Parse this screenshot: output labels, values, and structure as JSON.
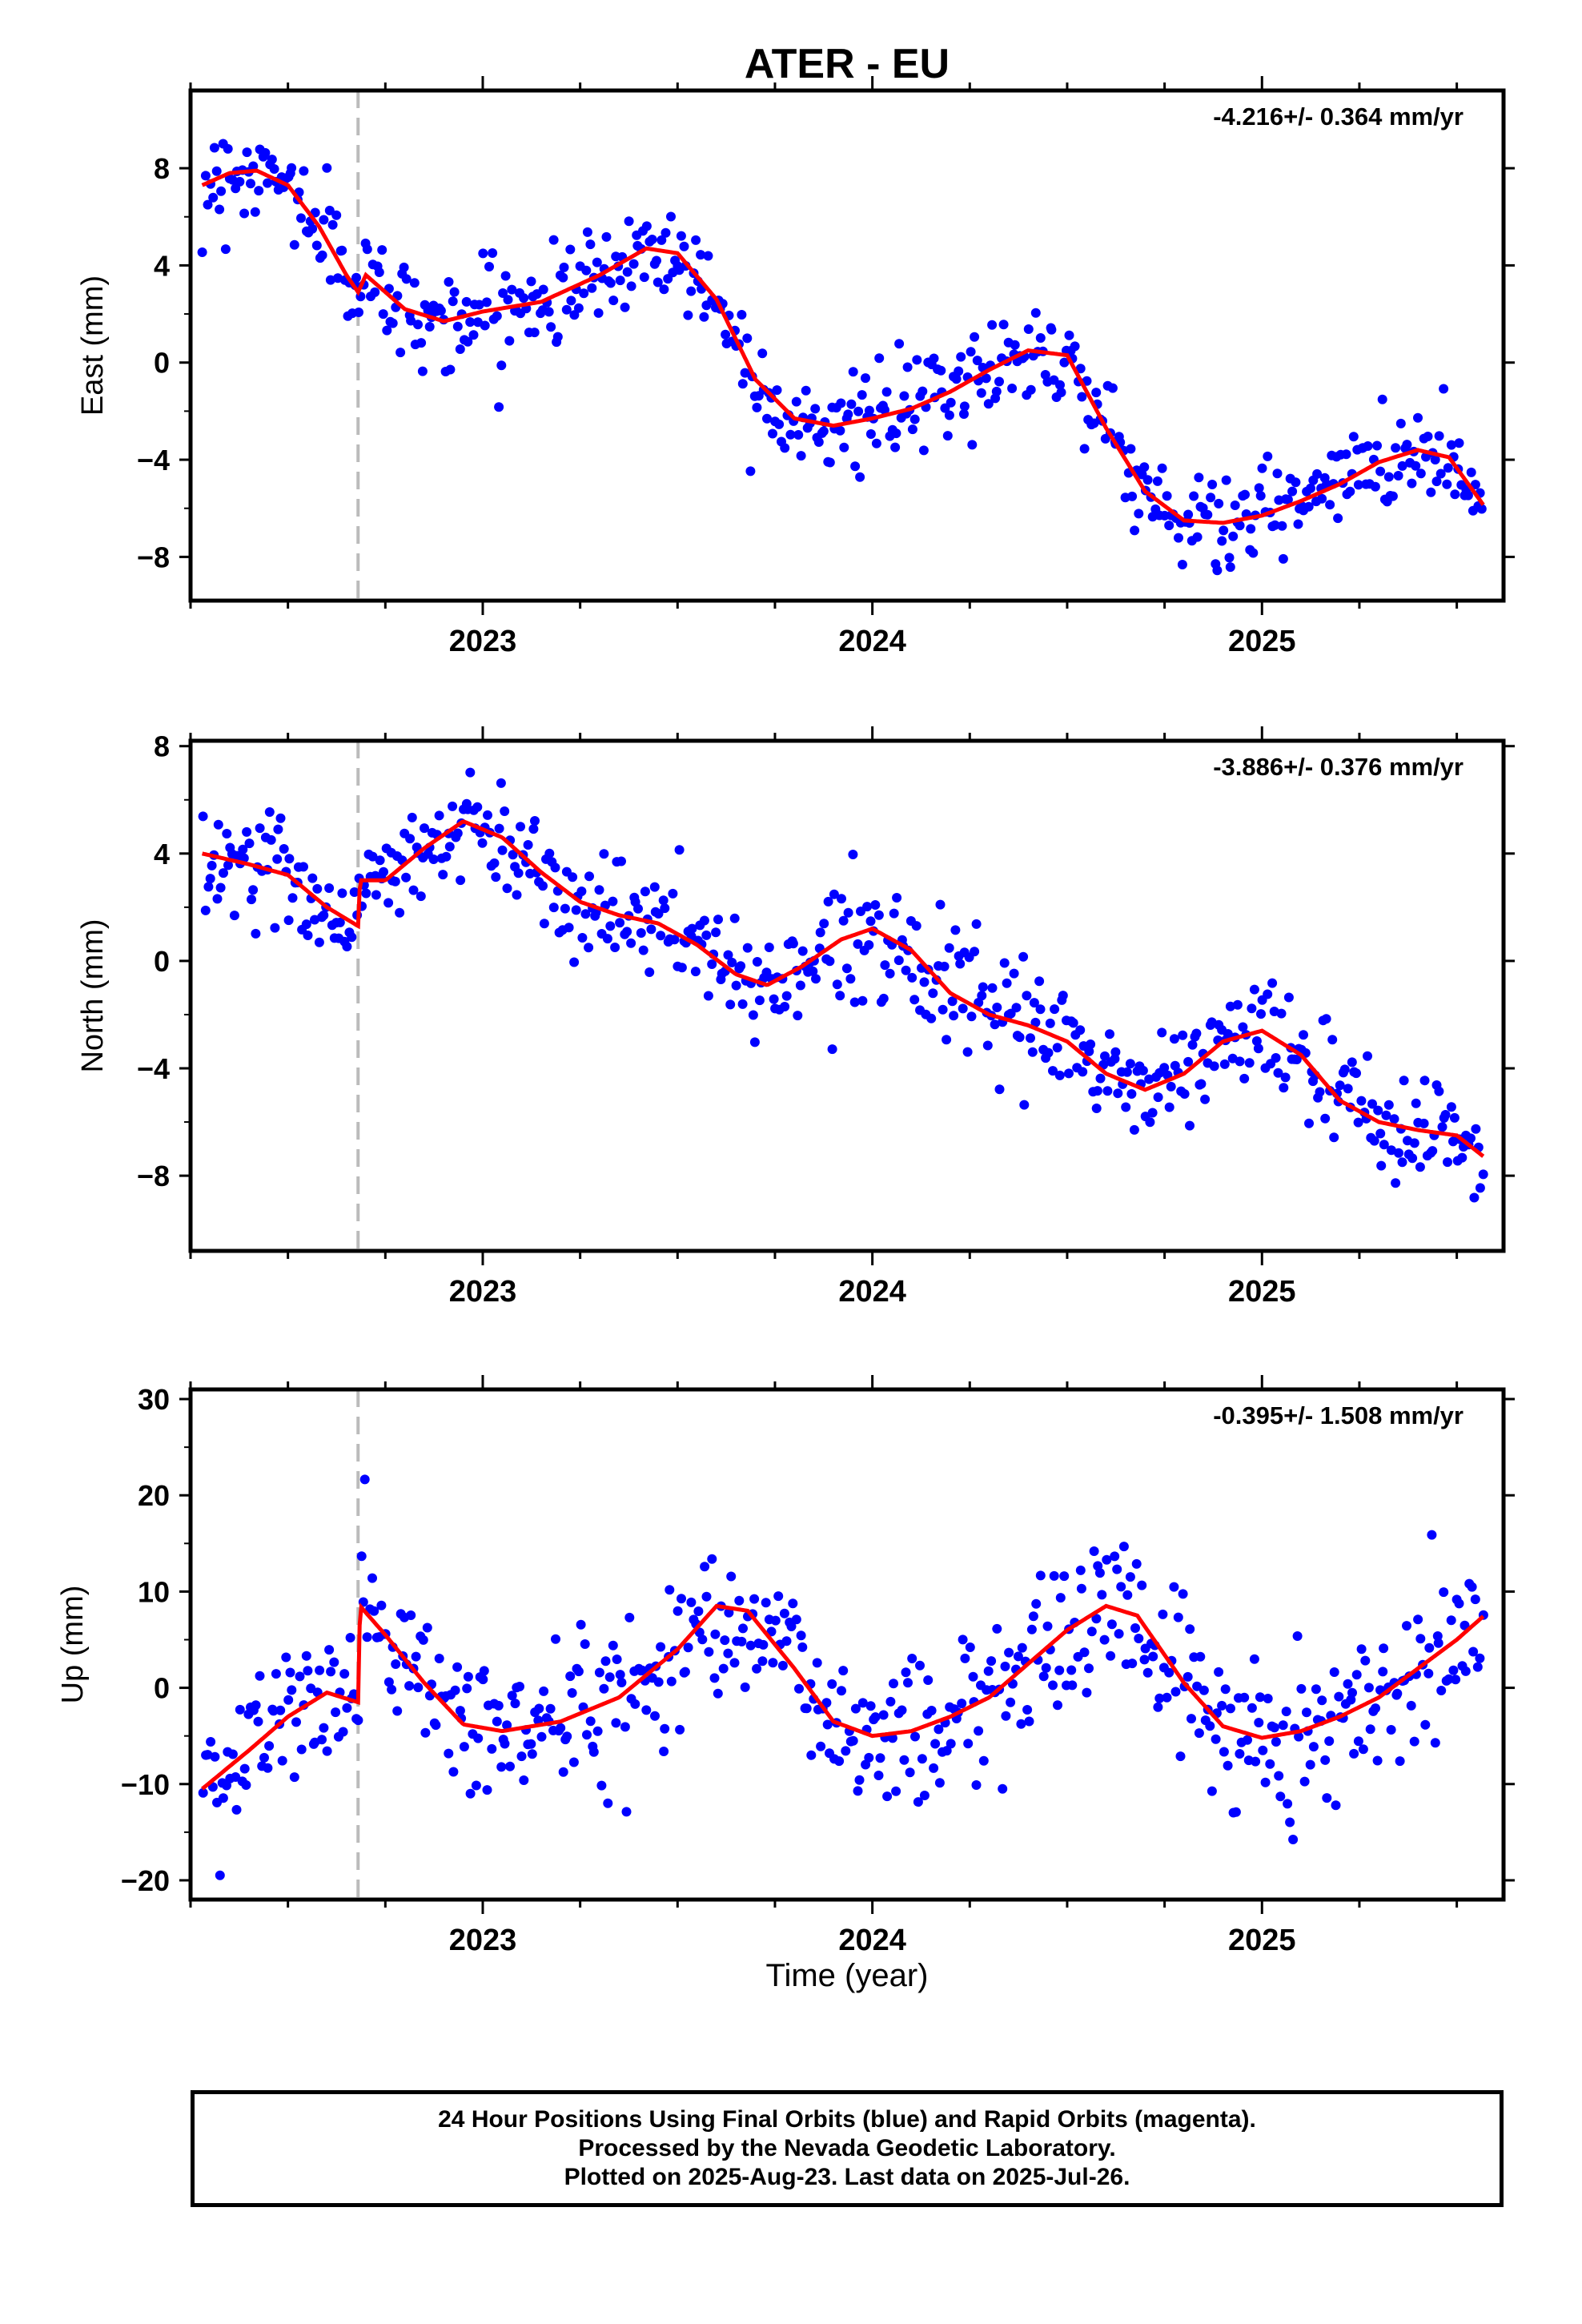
{
  "title": "ATER - EU",
  "xlabel": "Time (year)",
  "footer": {
    "line1": "24 Hour Positions Using Final Orbits (blue) and Rapid Orbits (magenta).",
    "line2": "Processed by the Nevada Geodetic Laboratory.",
    "line3": "Plotted on 2025-Aug-23. Last data on 2025-Jul-26."
  },
  "colors": {
    "points": "#0000ff",
    "model": "#ff0000",
    "event_line": "#bbbbbb",
    "frame": "#000000"
  },
  "chart_data": [
    {
      "type": "scatter",
      "ylabel": "East (mm)",
      "rate": "-4.216+/- 0.364 mm/yr",
      "xlim": [
        2022.25,
        2025.62
      ],
      "ylim": [
        -9.8,
        11.2
      ],
      "yticks": [
        -8,
        -4,
        0,
        4,
        8
      ],
      "xticks": [
        2023,
        2024,
        2025
      ],
      "event_line_x": 2022.68,
      "model_knots": [
        [
          2022.28,
          7.3
        ],
        [
          2022.35,
          7.8
        ],
        [
          2022.42,
          7.9
        ],
        [
          2022.5,
          7.3
        ],
        [
          2022.58,
          5.6
        ],
        [
          2022.65,
          3.6
        ],
        [
          2022.68,
          2.9
        ],
        [
          2022.7,
          3.6
        ],
        [
          2022.8,
          2.2
        ],
        [
          2022.9,
          1.7
        ],
        [
          2023.0,
          2.1
        ],
        [
          2023.15,
          2.5
        ],
        [
          2023.3,
          3.6
        ],
        [
          2023.42,
          4.7
        ],
        [
          2023.5,
          4.5
        ],
        [
          2023.6,
          2.6
        ],
        [
          2023.7,
          -0.7
        ],
        [
          2023.8,
          -2.3
        ],
        [
          2023.9,
          -2.6
        ],
        [
          2024.0,
          -2.3
        ],
        [
          2024.1,
          -1.9
        ],
        [
          2024.2,
          -1.2
        ],
        [
          2024.3,
          -0.3
        ],
        [
          2024.4,
          0.5
        ],
        [
          2024.5,
          0.3
        ],
        [
          2024.6,
          -2.7
        ],
        [
          2024.7,
          -5.3
        ],
        [
          2024.8,
          -6.5
        ],
        [
          2024.9,
          -6.6
        ],
        [
          2025.0,
          -6.3
        ],
        [
          2025.1,
          -5.7
        ],
        [
          2025.2,
          -5.0
        ],
        [
          2025.3,
          -4.1
        ],
        [
          2025.4,
          -3.6
        ],
        [
          2025.48,
          -3.9
        ],
        [
          2025.57,
          -5.9
        ]
      ],
      "noise_sd": 1.0,
      "n_points": 560
    },
    {
      "type": "scatter",
      "ylabel": "North (mm)",
      "rate": "-3.886+/- 0.376 mm/yr",
      "xlim": [
        2022.25,
        2025.62
      ],
      "ylim": [
        -10.8,
        8.2
      ],
      "yticks": [
        -8,
        -4,
        0,
        4,
        8
      ],
      "xticks": [
        2023,
        2024,
        2025
      ],
      "event_line_x": 2022.68,
      "model_knots": [
        [
          2022.28,
          4.0
        ],
        [
          2022.4,
          3.6
        ],
        [
          2022.5,
          3.2
        ],
        [
          2022.6,
          2.0
        ],
        [
          2022.68,
          1.3
        ],
        [
          2022.685,
          3.0
        ],
        [
          2022.75,
          3.0
        ],
        [
          2022.85,
          4.2
        ],
        [
          2022.95,
          5.2
        ],
        [
          2023.05,
          4.6
        ],
        [
          2023.15,
          3.3
        ],
        [
          2023.25,
          2.2
        ],
        [
          2023.35,
          1.7
        ],
        [
          2023.45,
          1.4
        ],
        [
          2023.55,
          0.6
        ],
        [
          2023.65,
          -0.5
        ],
        [
          2023.73,
          -0.9
        ],
        [
          2023.82,
          -0.2
        ],
        [
          2023.92,
          0.8
        ],
        [
          2024.0,
          1.2
        ],
        [
          2024.1,
          0.4
        ],
        [
          2024.2,
          -1.2
        ],
        [
          2024.3,
          -2.0
        ],
        [
          2024.4,
          -2.4
        ],
        [
          2024.5,
          -3.0
        ],
        [
          2024.6,
          -4.2
        ],
        [
          2024.7,
          -4.8
        ],
        [
          2024.8,
          -4.2
        ],
        [
          2024.9,
          -3.0
        ],
        [
          2025.0,
          -2.6
        ],
        [
          2025.1,
          -3.5
        ],
        [
          2025.2,
          -5.2
        ],
        [
          2025.3,
          -6.0
        ],
        [
          2025.4,
          -6.3
        ],
        [
          2025.5,
          -6.5
        ],
        [
          2025.57,
          -7.3
        ]
      ],
      "noise_sd": 1.0,
      "n_points": 560
    },
    {
      "type": "scatter",
      "ylabel": "Up (mm)",
      "rate": "-0.395+/- 1.508 mm/yr",
      "xlim": [
        2022.25,
        2025.62
      ],
      "ylim": [
        -22,
        31
      ],
      "yticks": [
        -20,
        -10,
        0,
        10,
        20,
        30
      ],
      "xticks": [
        2023,
        2024,
        2025
      ],
      "event_line_x": 2022.68,
      "model_knots": [
        [
          2022.28,
          -10.5
        ],
        [
          2022.4,
          -6.5
        ],
        [
          2022.5,
          -3.0
        ],
        [
          2022.6,
          -0.5
        ],
        [
          2022.68,
          -1.5
        ],
        [
          2022.685,
          8.5
        ],
        [
          2022.75,
          5.5
        ],
        [
          2022.85,
          0.5
        ],
        [
          2022.95,
          -3.8
        ],
        [
          2023.05,
          -4.5
        ],
        [
          2023.2,
          -3.5
        ],
        [
          2023.35,
          -1.0
        ],
        [
          2023.5,
          4.0
        ],
        [
          2023.6,
          8.5
        ],
        [
          2023.68,
          8.0
        ],
        [
          2023.8,
          2.0
        ],
        [
          2023.9,
          -3.5
        ],
        [
          2024.0,
          -5.0
        ],
        [
          2024.1,
          -4.5
        ],
        [
          2024.2,
          -3.0
        ],
        [
          2024.3,
          -1.0
        ],
        [
          2024.4,
          2.5
        ],
        [
          2024.5,
          6.0
        ],
        [
          2024.6,
          8.5
        ],
        [
          2024.68,
          7.5
        ],
        [
          2024.8,
          0.5
        ],
        [
          2024.9,
          -4.0
        ],
        [
          2025.0,
          -5.2
        ],
        [
          2025.1,
          -4.5
        ],
        [
          2025.2,
          -3.0
        ],
        [
          2025.3,
          -1.0
        ],
        [
          2025.4,
          2.0
        ],
        [
          2025.5,
          5.0
        ],
        [
          2025.57,
          7.5
        ]
      ],
      "noise_sd": 4.0,
      "n_points": 560
    }
  ]
}
